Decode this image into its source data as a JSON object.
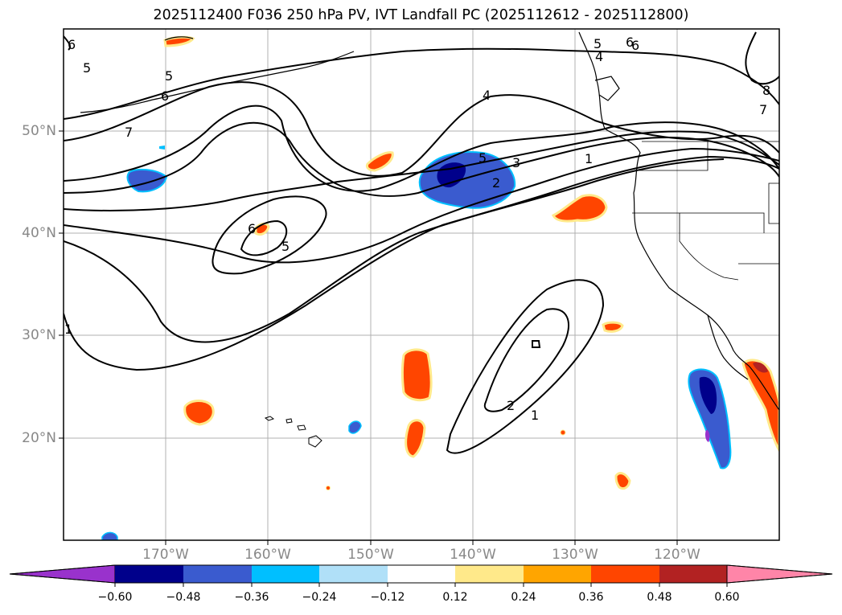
{
  "title": "2025112400 F036 250 hPa PV, IVT Landfall PC (2025112612 - 2025112800)",
  "map": {
    "lon_labels": [
      "170°W",
      "160°W",
      "150°W",
      "140°W",
      "130°W",
      "120°W"
    ],
    "lat_labels": [
      "50°N",
      "40°N",
      "30°N",
      "20°N"
    ],
    "grid": true,
    "contour_labels": [
      "6",
      "5",
      "5",
      "6",
      "7",
      "6",
      "5",
      "4",
      "5",
      "6",
      "3",
      "2",
      "5",
      "4",
      "6",
      "8",
      "7",
      "1",
      "2",
      "1",
      "1"
    ]
  },
  "colorbar": {
    "tick_labels": [
      "−0.60",
      "−0.48",
      "−0.36",
      "−0.24",
      "−0.12",
      "0.12",
      "0.24",
      "0.36",
      "0.48",
      "0.60"
    ],
    "colors": [
      "#9932cc",
      "#00008b",
      "#3a5bcf",
      "#00bfff",
      "#b0e0f8",
      "#ffffff",
      "#ffe98a",
      "#ffa500",
      "#ff4500",
      "#b22222",
      "#ff85a8"
    ]
  }
}
